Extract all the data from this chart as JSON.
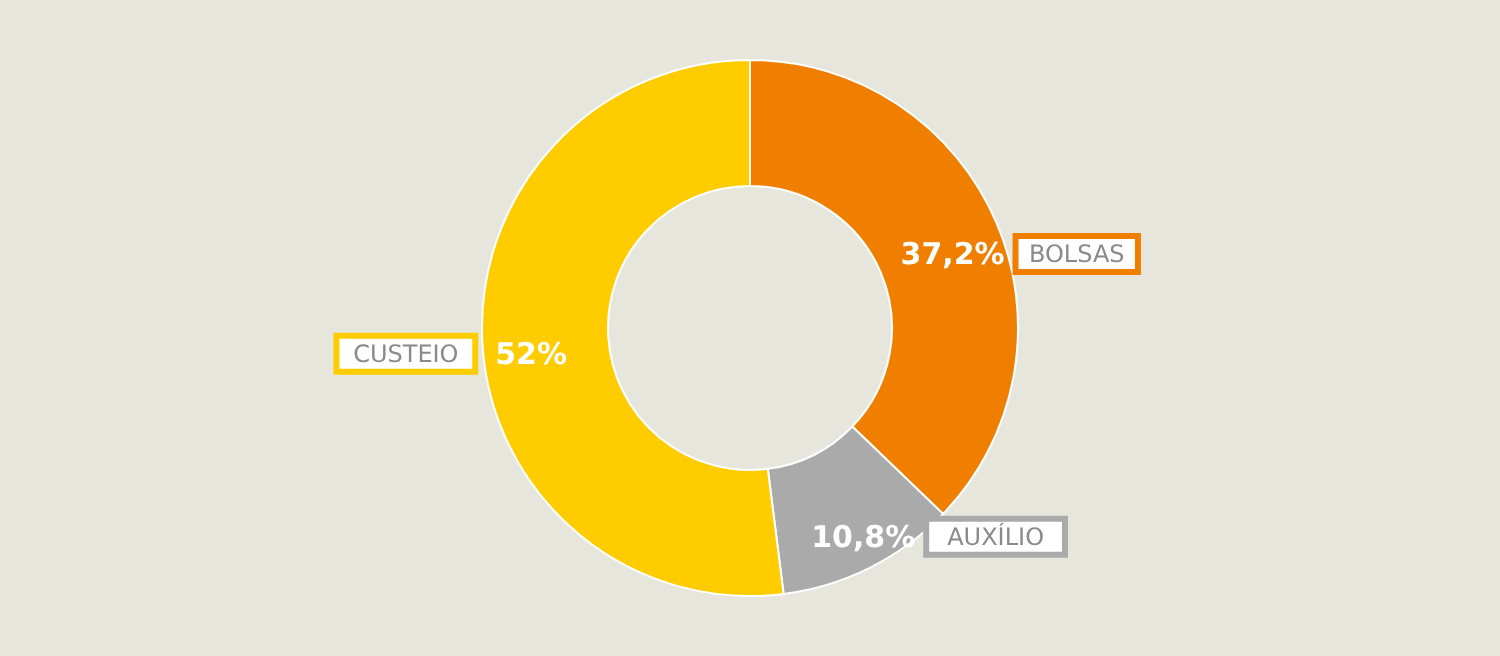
{
  "chart_data": {
    "type": "donut",
    "categories": [
      "BOLSAS",
      "AUXÍLIO",
      "CUSTEIO"
    ],
    "values": [
      37.2,
      10.8,
      52
    ],
    "colors": [
      "#f07f00",
      "#aaaaaa",
      "#ffcc00"
    ],
    "value_labels": [
      "37,2%",
      "10,8%",
      "52%"
    ]
  }
}
